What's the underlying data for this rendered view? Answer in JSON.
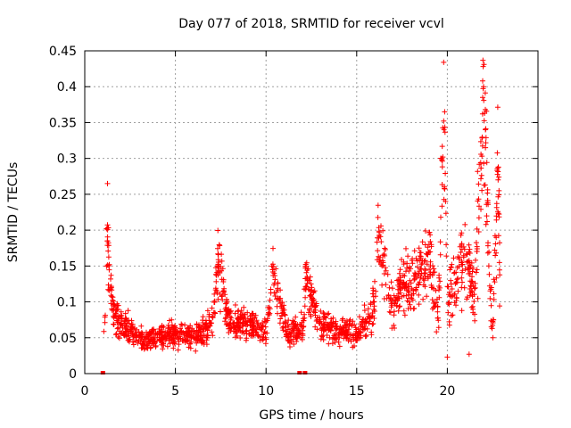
{
  "chart_data": {
    "type": "scatter",
    "title": "Day 077 of 2018, SRMTID for receiver vcvl",
    "xlabel": "GPS time / hours",
    "ylabel": "SRMTID / TECUs",
    "xlim": [
      0,
      25
    ],
    "ylim": [
      0,
      0.45
    ],
    "xticks": [
      0,
      5,
      10,
      15,
      20
    ],
    "xtick_labels": [
      "0",
      "5",
      "10",
      "15",
      "20"
    ],
    "yticks": [
      0,
      0.05,
      0.1,
      0.15,
      0.2,
      0.25,
      0.3,
      0.35,
      0.4,
      0.45
    ],
    "ytick_labels": [
      "0",
      "0.05",
      "0.1",
      "0.15",
      "0.2",
      "0.25",
      "0.3",
      "0.35",
      "0.4",
      "0.45"
    ],
    "grid": true,
    "marker": "+",
    "color": "#ff0000",
    "series": [
      {
        "name": "SRMTID",
        "approximate_trend": [
          {
            "x": 1.0,
            "y": 0.0
          },
          {
            "x": 1.1,
            "y": 0.07
          },
          {
            "x": 1.25,
            "y": 0.2
          },
          {
            "x": 1.5,
            "y": 0.09
          },
          {
            "x": 2.0,
            "y": 0.07
          },
          {
            "x": 3.0,
            "y": 0.05
          },
          {
            "x": 4.0,
            "y": 0.05
          },
          {
            "x": 5.0,
            "y": 0.055
          },
          {
            "x": 6.0,
            "y": 0.05
          },
          {
            "x": 7.0,
            "y": 0.07
          },
          {
            "x": 7.4,
            "y": 0.15
          },
          {
            "x": 8.0,
            "y": 0.07
          },
          {
            "x": 9.0,
            "y": 0.07
          },
          {
            "x": 10.0,
            "y": 0.06
          },
          {
            "x": 10.4,
            "y": 0.14
          },
          {
            "x": 11.0,
            "y": 0.07
          },
          {
            "x": 11.9,
            "y": 0.0
          },
          {
            "x": 12.2,
            "y": 0.13
          },
          {
            "x": 13.0,
            "y": 0.07
          },
          {
            "x": 14.0,
            "y": 0.06
          },
          {
            "x": 15.0,
            "y": 0.055
          },
          {
            "x": 16.0,
            "y": 0.09
          },
          {
            "x": 16.2,
            "y": 0.19
          },
          {
            "x": 17.0,
            "y": 0.08
          },
          {
            "x": 17.5,
            "y": 0.13
          },
          {
            "x": 18.0,
            "y": 0.12
          },
          {
            "x": 19.0,
            "y": 0.16
          },
          {
            "x": 19.5,
            "y": 0.08
          },
          {
            "x": 19.8,
            "y": 0.36
          },
          {
            "x": 20.0,
            "y": 0.1
          },
          {
            "x": 21.0,
            "y": 0.17
          },
          {
            "x": 21.5,
            "y": 0.1
          },
          {
            "x": 22.0,
            "y": 0.4
          },
          {
            "x": 22.3,
            "y": 0.15
          },
          {
            "x": 22.5,
            "y": 0.06
          },
          {
            "x": 22.8,
            "y": 0.27
          },
          {
            "x": 22.9,
            "y": 0.15
          }
        ],
        "outliers": [
          {
            "x": 1.2,
            "y": 0.202
          },
          {
            "x": 1.25,
            "y": 0.185
          },
          {
            "x": 7.35,
            "y": 0.152
          },
          {
            "x": 10.45,
            "y": 0.14
          },
          {
            "x": 16.25,
            "y": 0.193
          },
          {
            "x": 19.85,
            "y": 0.365
          },
          {
            "x": 19.8,
            "y": 0.352
          },
          {
            "x": 19.75,
            "y": 0.302
          },
          {
            "x": 19.9,
            "y": 0.24
          },
          {
            "x": 21.95,
            "y": 0.408
          },
          {
            "x": 22.0,
            "y": 0.4
          },
          {
            "x": 21.95,
            "y": 0.385
          },
          {
            "x": 22.05,
            "y": 0.363
          },
          {
            "x": 22.1,
            "y": 0.34
          },
          {
            "x": 22.1,
            "y": 0.315
          },
          {
            "x": 22.75,
            "y": 0.283
          },
          {
            "x": 22.8,
            "y": 0.27
          },
          {
            "x": 22.85,
            "y": 0.255
          },
          {
            "x": 20.0,
            "y": 0.023
          },
          {
            "x": 21.2,
            "y": 0.027
          },
          {
            "x": 1.0,
            "y": 0.0
          },
          {
            "x": 11.85,
            "y": 0.0
          },
          {
            "x": 12.15,
            "y": 0.0
          }
        ]
      }
    ]
  }
}
